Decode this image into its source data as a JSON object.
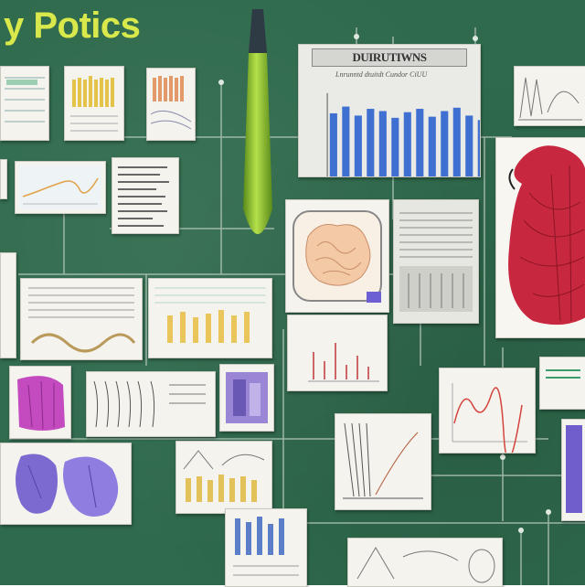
{
  "title": "y Potics",
  "main_chart": {
    "title_text": "DUIRUTIWNS",
    "subtitle_text": "Lnrunntd dtuitdt Cundor CiUU",
    "chart_data": {
      "type": "bar",
      "values": [
        82,
        88,
        80,
        86,
        84,
        78,
        83,
        86,
        79,
        84,
        87,
        80,
        76,
        82
      ],
      "color": "#3f6fd1"
    }
  },
  "colors": {
    "board": "#2f6a4c",
    "title": "#d9e84a",
    "wire": "#b9c9bd",
    "heart": "#c8283f",
    "marker": "#8fc43a",
    "organ_purple": "#8a6fd0",
    "organ_magenta": "#c44ac0"
  },
  "icons": {
    "marker": "marker-icon",
    "heart": "heart-organ-icon",
    "brain": "brain-icon",
    "lungs": "lungs-icon"
  }
}
